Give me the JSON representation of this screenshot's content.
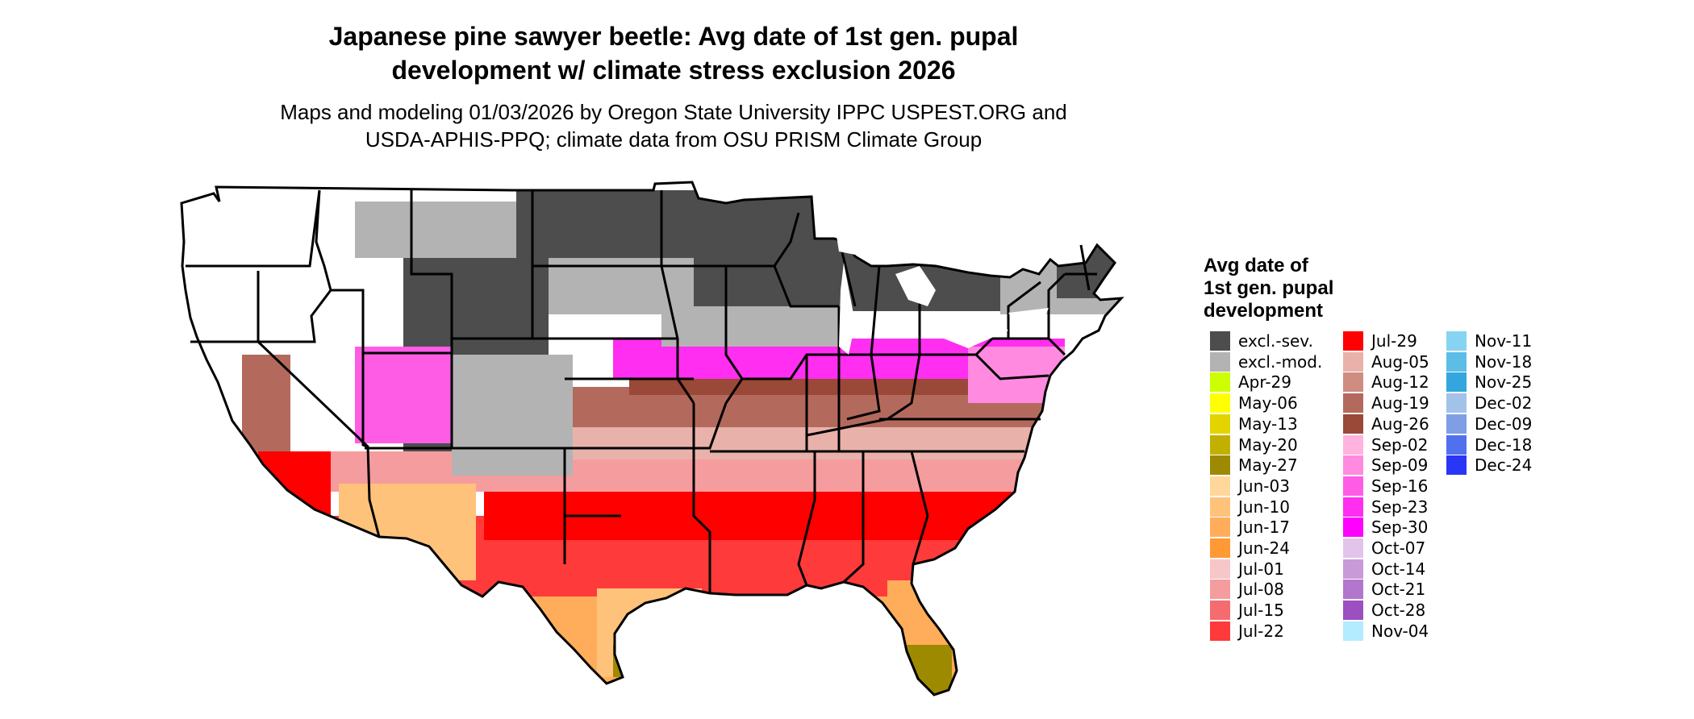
{
  "title": {
    "line1": "Japanese pine sawyer beetle: Avg date of 1st gen. pupal",
    "line2": "development w/ climate stress exclusion 2026"
  },
  "subtitle": {
    "line1": "Maps and modeling 01/03/2026 by Oregon State University IPPC USPEST.ORG and",
    "line2": "USDA-APHIS-PPQ; climate data from OSU PRISM Climate Group"
  },
  "legend": {
    "title_line1": "Avg date of",
    "title_line2": "1st gen. pupal",
    "title_line3": "development",
    "columns": [
      [
        {
          "label": "excl.-sev.",
          "color": "#4d4d4d"
        },
        {
          "label": "excl.-mod.",
          "color": "#b3b3b3"
        },
        {
          "label": "Apr-29",
          "color": "#ccff00"
        },
        {
          "label": "May-06",
          "color": "#ffff00"
        },
        {
          "label": "May-13",
          "color": "#e3d400"
        },
        {
          "label": "May-20",
          "color": "#c2b000"
        },
        {
          "label": "May-27",
          "color": "#9e8a00"
        },
        {
          "label": "Jun-03",
          "color": "#ffd79a"
        },
        {
          "label": "Jun-10",
          "color": "#ffc27a"
        },
        {
          "label": "Jun-17",
          "color": "#ffad5a"
        },
        {
          "label": "Jun-24",
          "color": "#ff9933"
        },
        {
          "label": "Jul-01",
          "color": "#f7c6c9"
        },
        {
          "label": "Jul-08",
          "color": "#f59c9f"
        },
        {
          "label": "Jul-15",
          "color": "#f56c70"
        },
        {
          "label": "Jul-22",
          "color": "#ff3a3a"
        }
      ],
      [
        {
          "label": "Jul-29",
          "color": "#ff0000"
        },
        {
          "label": "Aug-05",
          "color": "#e8b2aa"
        },
        {
          "label": "Aug-12",
          "color": "#cf8c80"
        },
        {
          "label": "Aug-19",
          "color": "#b36a5c"
        },
        {
          "label": "Aug-26",
          "color": "#9a4838"
        },
        {
          "label": "Sep-02",
          "color": "#ffb3de"
        },
        {
          "label": "Sep-09",
          "color": "#ff8ae0"
        },
        {
          "label": "Sep-16",
          "color": "#ff5ce6"
        },
        {
          "label": "Sep-23",
          "color": "#ff2ef0"
        },
        {
          "label": "Sep-30",
          "color": "#ff00ff"
        },
        {
          "label": "Oct-07",
          "color": "#e2c4ea"
        },
        {
          "label": "Oct-14",
          "color": "#c99ad8"
        },
        {
          "label": "Oct-21",
          "color": "#b276cc"
        },
        {
          "label": "Oct-28",
          "color": "#9c4fc0"
        },
        {
          "label": "Nov-04",
          "color": "#b3ecff"
        }
      ],
      [
        {
          "label": "Nov-11",
          "color": "#87d4f2"
        },
        {
          "label": "Nov-18",
          "color": "#5cbde6"
        },
        {
          "label": "Nov-25",
          "color": "#33a6dd"
        },
        {
          "label": "Dec-02",
          "color": "#a3c2ea"
        },
        {
          "label": "Dec-09",
          "color": "#7f9ee6"
        },
        {
          "label": "Dec-18",
          "color": "#5070ee"
        },
        {
          "label": "Dec-24",
          "color": "#2a36f5"
        }
      ]
    ]
  }
}
